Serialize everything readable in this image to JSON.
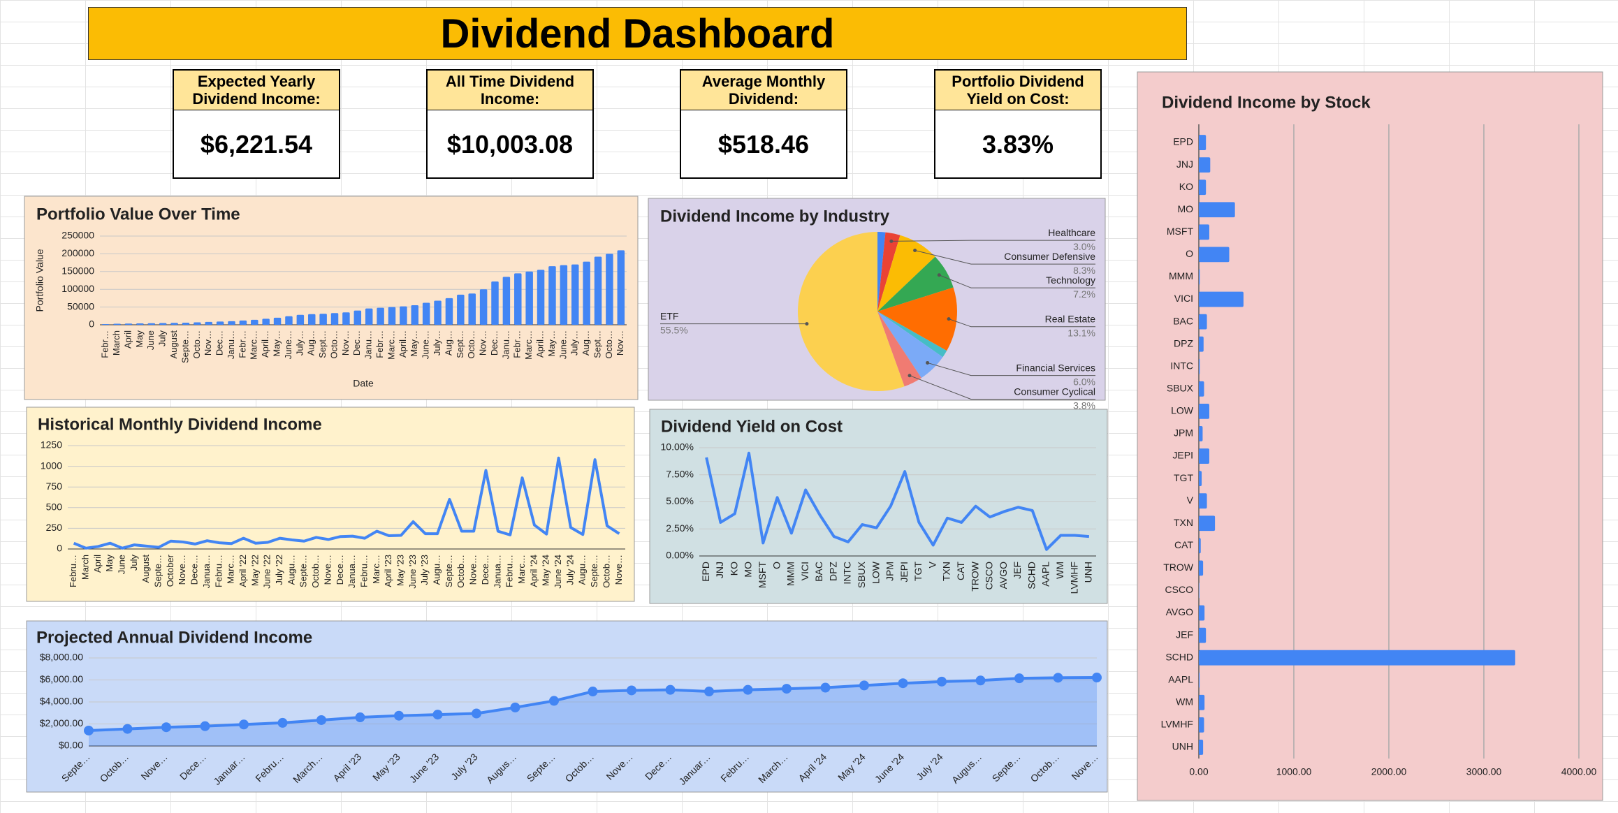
{
  "title": "Dividend Dashboard",
  "kpis": [
    {
      "label": "Expected Yearly Dividend Income:",
      "value": "$6,221.54"
    },
    {
      "label": "All Time Dividend Income:",
      "value": "$10,003.08"
    },
    {
      "label": "Average Monthly Dividend:",
      "value": "$518.46"
    },
    {
      "label": "Portfolio Dividend Yield on Cost:",
      "value": "3.83%"
    }
  ],
  "chart_data": [
    {
      "type": "bar",
      "title": "Portfolio Value Over Time",
      "x_label": "Date",
      "y_label": "Portfolio Value",
      "background": "#fce5cd",
      "color": "#4285f4",
      "grid": true,
      "categories": [
        "Febr…",
        "March",
        "April",
        "May",
        "June",
        "July",
        "August",
        "Septe…",
        "Octo…",
        "Nov…",
        "Dec…",
        "Janu…",
        "Febr…",
        "Marc…",
        "April…",
        "May…",
        "June…",
        "July…",
        "Aug…",
        "Sept…",
        "Octo…",
        "Nov…",
        "Dec…",
        "Janu…",
        "Febr…",
        "Marc…",
        "April…",
        "May…",
        "June…",
        "July…",
        "Aug…",
        "Sept…",
        "Octo…",
        "Nov…",
        "Dec…",
        "Janu…",
        "Febr…",
        "Marc…",
        "April…",
        "May…",
        "June…",
        "July…",
        "Aug…",
        "Sept…",
        "Octo…",
        "Nov…"
      ],
      "values": [
        2000,
        3000,
        3500,
        4000,
        4500,
        5000,
        5500,
        6000,
        7000,
        8000,
        9000,
        10000,
        12000,
        14000,
        17000,
        20000,
        24000,
        28000,
        30000,
        31000,
        33000,
        35000,
        40000,
        46000,
        48000,
        50000,
        52000,
        55000,
        62000,
        68000,
        75000,
        85000,
        88000,
        100000,
        122000,
        135000,
        145000,
        150000,
        155000,
        165000,
        168000,
        170000,
        178000,
        192000,
        200000,
        210000
      ],
      "ylim": [
        0,
        250000
      ],
      "yticks": [
        0,
        50000,
        100000,
        150000,
        200000,
        250000
      ]
    },
    {
      "type": "pie",
      "title": "Dividend Income by Industry",
      "background": "#d9d2e9",
      "categories": [
        null,
        "Healthcare",
        "Consumer Defensive",
        "Technology",
        "Real Estate",
        null,
        "Financial Services",
        "Consumer Cyclical",
        "ETF"
      ],
      "values": [
        1.6,
        3.0,
        8.3,
        7.2,
        13.1,
        1.5,
        6.0,
        3.8,
        55.5
      ],
      "value_labels": [
        null,
        "3.0%",
        "8.3%",
        "7.2%",
        "13.1%",
        null,
        "6.0%",
        "3.8%",
        "55.5%"
      ],
      "colors": [
        "#4285f4",
        "#ea4335",
        "#fbbc04",
        "#34a853",
        "#ff6d01",
        "#46bdc6",
        "#7baaf7",
        "#f07b72",
        "#fcd04f"
      ]
    },
    {
      "type": "line",
      "title": "Historical Monthly Dividend Income",
      "background": "#fff2cc",
      "color": "#4285f4",
      "grid": true,
      "categories": [
        "Febru…",
        "March",
        "April",
        "May",
        "June",
        "July",
        "August",
        "Septe…",
        "October",
        "Nove…",
        "Dece…",
        "Janua…",
        "Febru…",
        "Marc…",
        "April '22",
        "May '22",
        "June '22",
        "July '22",
        "Augu…",
        "Septe…",
        "Octob…",
        "Nove…",
        "Dece…",
        "Janua…",
        "Febru…",
        "Marc…",
        "April '23",
        "May '23",
        "June '23",
        "July '23",
        "Augu…",
        "Septe…",
        "Octob…",
        "Nove…",
        "Dece…",
        "Janua…",
        "Febru…",
        "Marc…",
        "April '24",
        "May '24",
        "June '24",
        "July '24",
        "Augu…",
        "Septe…",
        "Octob…",
        "Nove…"
      ],
      "values": [
        70,
        10,
        30,
        70,
        10,
        50,
        35,
        20,
        95,
        85,
        60,
        100,
        75,
        65,
        130,
        70,
        80,
        130,
        110,
        95,
        140,
        115,
        150,
        155,
        130,
        215,
        160,
        165,
        330,
        185,
        185,
        600,
        215,
        215,
        950,
        215,
        170,
        860,
        290,
        180,
        1100,
        260,
        175,
        1080,
        280,
        185
      ],
      "ylim": [
        0,
        1250
      ],
      "yticks": [
        0,
        250,
        500,
        750,
        1000,
        1250
      ]
    },
    {
      "type": "line",
      "title": "Dividend Yield on Cost",
      "background": "#d0e0e3",
      "color": "#4285f4",
      "grid": true,
      "categories": [
        "EPD",
        "JNJ",
        "KO",
        "MO",
        "MSFT",
        "O",
        "MMM",
        "VICI",
        "BAC",
        "DPZ",
        "INTC",
        "SBUX",
        "LOW",
        "JPM",
        "JEPI",
        "TGT",
        "V",
        "TXN",
        "CAT",
        "TROW",
        "CSCO",
        "AVGO",
        "JEF",
        "SCHD",
        "AAPL",
        "WM",
        "LVMHF",
        "UNH"
      ],
      "values": [
        9.1,
        3.1,
        3.9,
        9.5,
        1.2,
        5.4,
        2.1,
        6.1,
        3.8,
        1.8,
        1.3,
        2.9,
        2.6,
        4.6,
        7.8,
        3.1,
        1.0,
        3.5,
        3.1,
        4.6,
        3.6,
        4.1,
        4.5,
        4.2,
        0.6,
        1.9,
        1.9,
        1.8
      ],
      "ylim": [
        0,
        10
      ],
      "yticks": [
        {
          "value": 0,
          "label": "0.00%"
        },
        {
          "value": 2.5,
          "label": "2.50%"
        },
        {
          "value": 5,
          "label": "5.00%"
        },
        {
          "value": 7.5,
          "label": "7.50%"
        },
        {
          "value": 10,
          "label": "10.00%"
        }
      ]
    },
    {
      "type": "area",
      "title": "Projected Annual Dividend Income",
      "background": "#c9daf8",
      "color": "#4285f4",
      "grid": true,
      "markers": true,
      "categories": [
        "Septe…",
        "Octob…",
        "Nove…",
        "Dece…",
        "Januar…",
        "Febru…",
        "March…",
        "April '23",
        "May '23",
        "June '23",
        "July '23",
        "Augus…",
        "Septe…",
        "Octob…",
        "Nove…",
        "Dece…",
        "Januar…",
        "Febru…",
        "March…",
        "April '24",
        "May '24",
        "June '24",
        "July '24",
        "Augus…",
        "Septe…",
        "Octob…",
        "Nove…"
      ],
      "values": [
        1400,
        1550,
        1700,
        1800,
        1950,
        2100,
        2350,
        2600,
        2750,
        2850,
        2950,
        3500,
        4100,
        4950,
        5050,
        5100,
        4950,
        5100,
        5200,
        5300,
        5500,
        5700,
        5850,
        5950,
        6150,
        6200,
        6220
      ],
      "ylim": [
        0,
        8000
      ],
      "yticks": [
        {
          "value": 0,
          "label": "$0.00"
        },
        {
          "value": 2000,
          "label": "$2,000.00"
        },
        {
          "value": 4000,
          "label": "$4,000.00"
        },
        {
          "value": 6000,
          "label": "$6,000.00"
        },
        {
          "value": 8000,
          "label": "$8,000.00"
        }
      ]
    },
    {
      "type": "barh",
      "title": "Dividend Income by Stock",
      "background": "#f4cccc",
      "color": "#4285f4",
      "grid": true,
      "categories": [
        "EPD",
        "JNJ",
        "KO",
        "MO",
        "MSFT",
        "O",
        "MMM",
        "VICI",
        "BAC",
        "DPZ",
        "INTC",
        "SBUX",
        "LOW",
        "JPM",
        "JEPI",
        "TGT",
        "V",
        "TXN",
        "CAT",
        "TROW",
        "CSCO",
        "AVGO",
        "JEF",
        "SCHD",
        "AAPL",
        "WM",
        "LVMHF",
        "UNH"
      ],
      "values": [
        75,
        120,
        75,
        380,
        110,
        320,
        10,
        470,
        85,
        50,
        10,
        55,
        110,
        40,
        110,
        30,
        85,
        170,
        20,
        45,
        5,
        60,
        75,
        3330,
        8,
        60,
        55,
        45
      ],
      "xlim": [
        0,
        4000
      ],
      "xticks": [
        {
          "value": 0,
          "label": "0.00"
        },
        {
          "value": 1000,
          "label": "1000.00"
        },
        {
          "value": 2000,
          "label": "2000.00"
        },
        {
          "value": 3000,
          "label": "3000.00"
        },
        {
          "value": 4000,
          "label": "4000.00"
        }
      ]
    }
  ]
}
